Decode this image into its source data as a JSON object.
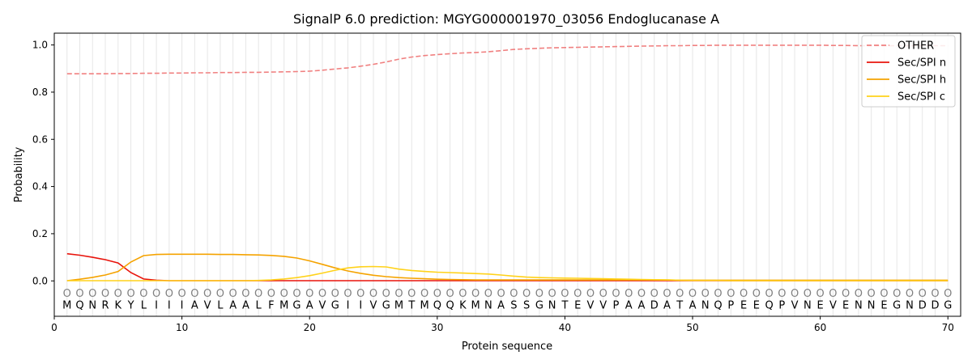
{
  "chart_data": {
    "type": "line",
    "title": "SignalP 6.0 prediction: MGYG000001970_03056 Endoglucanase A",
    "xlabel": "Protein sequence",
    "ylabel": "Probability",
    "xlim": [
      0,
      71
    ],
    "ylim": [
      -0.15,
      1.05
    ],
    "xticks": [
      0,
      10,
      20,
      30,
      40,
      50,
      60,
      70
    ],
    "yticks": [
      0.0,
      0.2,
      0.4,
      0.6,
      0.8,
      1.0
    ],
    "grid": "vertical lines at each residue",
    "legend_position": "top-right",
    "sequence": "MQNRKYLIIIAVLAALFMGAVGIIVGMTMQQKMNASSGNTEVVPAADATANQPEEQPVNEVENNEGNDDG",
    "region_labels": "OOOOOOOOOOOOOOOOOOOOOOOOOOOOOOOOOOOOOOOOOOOOOOOOOOOOOOOOOOOOOOOOOOOOOO",
    "x": [
      1,
      2,
      3,
      4,
      5,
      6,
      7,
      8,
      9,
      10,
      11,
      12,
      13,
      14,
      15,
      16,
      17,
      18,
      19,
      20,
      21,
      22,
      23,
      24,
      25,
      26,
      27,
      28,
      29,
      30,
      31,
      32,
      33,
      34,
      35,
      36,
      37,
      38,
      39,
      40,
      41,
      42,
      43,
      44,
      45,
      46,
      47,
      48,
      49,
      50,
      51,
      52,
      53,
      54,
      55,
      56,
      57,
      58,
      59,
      60,
      61,
      62,
      63,
      64,
      65,
      66,
      67,
      68,
      69,
      70
    ],
    "series": [
      {
        "name": "OTHER",
        "color": "#f08080",
        "dash": true,
        "values": [
          0.878,
          0.878,
          0.878,
          0.878,
          0.879,
          0.879,
          0.88,
          0.88,
          0.881,
          0.881,
          0.882,
          0.882,
          0.883,
          0.883,
          0.884,
          0.884,
          0.885,
          0.886,
          0.887,
          0.889,
          0.893,
          0.898,
          0.903,
          0.91,
          0.918,
          0.928,
          0.94,
          0.949,
          0.955,
          0.959,
          0.963,
          0.966,
          0.968,
          0.971,
          0.976,
          0.981,
          0.984,
          0.986,
          0.988,
          0.989,
          0.99,
          0.991,
          0.992,
          0.993,
          0.994,
          0.995,
          0.996,
          0.997,
          0.997,
          0.998,
          0.998,
          0.999,
          0.999,
          0.999,
          0.999,
          0.999,
          0.999,
          0.999,
          0.999,
          0.999,
          0.998,
          0.998,
          0.997,
          0.997,
          0.997,
          0.997,
          0.997,
          0.997,
          0.997,
          0.997
        ]
      },
      {
        "name": "Sec/SPI n",
        "color": "#e8140c",
        "dash": false,
        "values": [
          0.115,
          0.109,
          0.1,
          0.09,
          0.076,
          0.035,
          0.008,
          0.003,
          0.001,
          0.001,
          0.001,
          0.001,
          0.001,
          0.001,
          0.001,
          0.001,
          0.001,
          0.001,
          0.001,
          0.001,
          0.001,
          0.001,
          0.001,
          0.001,
          0.001,
          0.001,
          0.001,
          0.001,
          0.001,
          0.001,
          0.001,
          0.001,
          0.001,
          0.001,
          0.001,
          0.001,
          0.001,
          0.001,
          0.001,
          0.001,
          0.001,
          0.001,
          0.001,
          0.001,
          0.001,
          0.001,
          0.001,
          0.001,
          0.001,
          0.001,
          0.001,
          0.001,
          0.001,
          0.001,
          0.001,
          0.001,
          0.001,
          0.001,
          0.001,
          0.001,
          0.001,
          0.001,
          0.001,
          0.001,
          0.001,
          0.001,
          0.001,
          0.001,
          0.001,
          0.001
        ]
      },
      {
        "name": "Sec/SPI h",
        "color": "#f5a300",
        "dash": false,
        "values": [
          0.001,
          0.007,
          0.015,
          0.025,
          0.04,
          0.08,
          0.107,
          0.112,
          0.113,
          0.113,
          0.113,
          0.113,
          0.112,
          0.112,
          0.111,
          0.11,
          0.108,
          0.104,
          0.097,
          0.085,
          0.07,
          0.055,
          0.042,
          0.032,
          0.024,
          0.018,
          0.014,
          0.011,
          0.009,
          0.007,
          0.006,
          0.005,
          0.004,
          0.004,
          0.004,
          0.004,
          0.004,
          0.004,
          0.004,
          0.004,
          0.004,
          0.004,
          0.004,
          0.004,
          0.004,
          0.004,
          0.004,
          0.004,
          0.003,
          0.003,
          0.003,
          0.003,
          0.003,
          0.003,
          0.003,
          0.003,
          0.003,
          0.003,
          0.003,
          0.003,
          0.003,
          0.003,
          0.003,
          0.003,
          0.003,
          0.003,
          0.003,
          0.003,
          0.003,
          0.003
        ]
      },
      {
        "name": "Sec/SPI c",
        "color": "#ffd21a",
        "dash": false,
        "values": [
          0.001,
          0.001,
          0.001,
          0.001,
          0.001,
          0.001,
          0.001,
          0.001,
          0.001,
          0.001,
          0.001,
          0.001,
          0.001,
          0.001,
          0.001,
          0.002,
          0.004,
          0.008,
          0.014,
          0.022,
          0.033,
          0.045,
          0.055,
          0.06,
          0.061,
          0.059,
          0.05,
          0.044,
          0.04,
          0.037,
          0.035,
          0.033,
          0.031,
          0.029,
          0.025,
          0.02,
          0.016,
          0.014,
          0.013,
          0.012,
          0.011,
          0.01,
          0.009,
          0.008,
          0.007,
          0.006,
          0.005,
          0.004,
          0.003,
          0.002,
          0.002,
          0.002,
          0.001,
          0.001,
          0.001,
          0.001,
          0.001,
          0.001,
          0.001,
          0.001,
          0.001,
          0.001,
          0.001,
          0.001,
          0.001,
          0.001,
          0.001,
          0.001,
          0.001,
          0.001
        ]
      }
    ]
  }
}
